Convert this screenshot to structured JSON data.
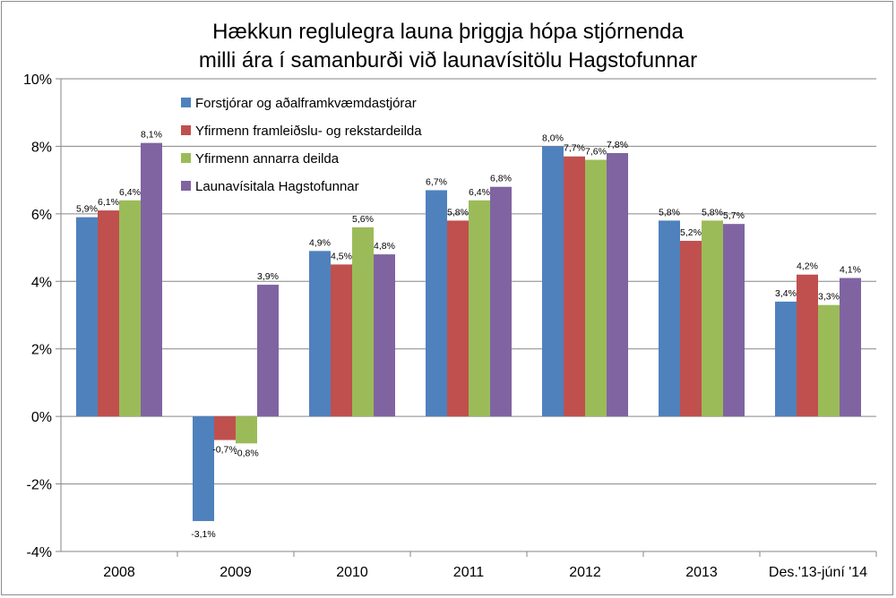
{
  "chart_data": {
    "type": "bar",
    "title": [
      "Hækkun reglulegra launa þriggja hópa stjórnenda",
      "milli ára í samanburði við launavísitölu Hagstofunnar"
    ],
    "categories": [
      "2008",
      "2009",
      "2010",
      "2011",
      "2012",
      "2013",
      "Des.'13-júní '14"
    ],
    "series": [
      {
        "name": "Forstjórar og aðalframkvæmdastjórar",
        "color": "#4f81bd",
        "values": [
          5.9,
          -3.1,
          4.9,
          6.7,
          8.0,
          5.8,
          3.4
        ],
        "labels": [
          "5,9%",
          "-3,1%",
          "4,9%",
          "6,7%",
          "8,0%",
          "5,8%",
          "3,4%"
        ]
      },
      {
        "name": "Yfirmenn framleiðslu- og rekstardeilda",
        "color": "#c0504d",
        "values": [
          6.1,
          -0.7,
          4.5,
          5.8,
          7.7,
          5.2,
          4.2
        ],
        "labels": [
          "6,1%",
          "-0,7%",
          "4,5%",
          "5,8%",
          "7,7%",
          "5,2%",
          "4,2%"
        ]
      },
      {
        "name": "Yfirmenn annarra deilda",
        "color": "#9bbb59",
        "values": [
          6.4,
          -0.8,
          5.6,
          6.4,
          7.6,
          5.8,
          3.3
        ],
        "labels": [
          "6,4%",
          "-0,8%",
          "5,6%",
          "6,4%",
          "7,6%",
          "5,8%",
          "3,3%"
        ]
      },
      {
        "name": "Launavísitala Hagstofunnar",
        "color": "#8064a2",
        "values": [
          8.1,
          3.9,
          4.8,
          6.8,
          7.8,
          5.7,
          4.1
        ],
        "labels": [
          "8,1%",
          "3,9%",
          "4,8%",
          "6,8%",
          "7,8%",
          "5,7%",
          "4,1%"
        ]
      }
    ],
    "ylim": [
      -4,
      10
    ],
    "yticks": [
      10,
      8,
      6,
      4,
      2,
      0,
      -2,
      -4
    ],
    "ytick_labels": [
      "10%",
      "8%",
      "6%",
      "4%",
      "2%",
      "0%",
      "-2%",
      "-4%"
    ],
    "grid": true,
    "legend_position": "top-left"
  }
}
